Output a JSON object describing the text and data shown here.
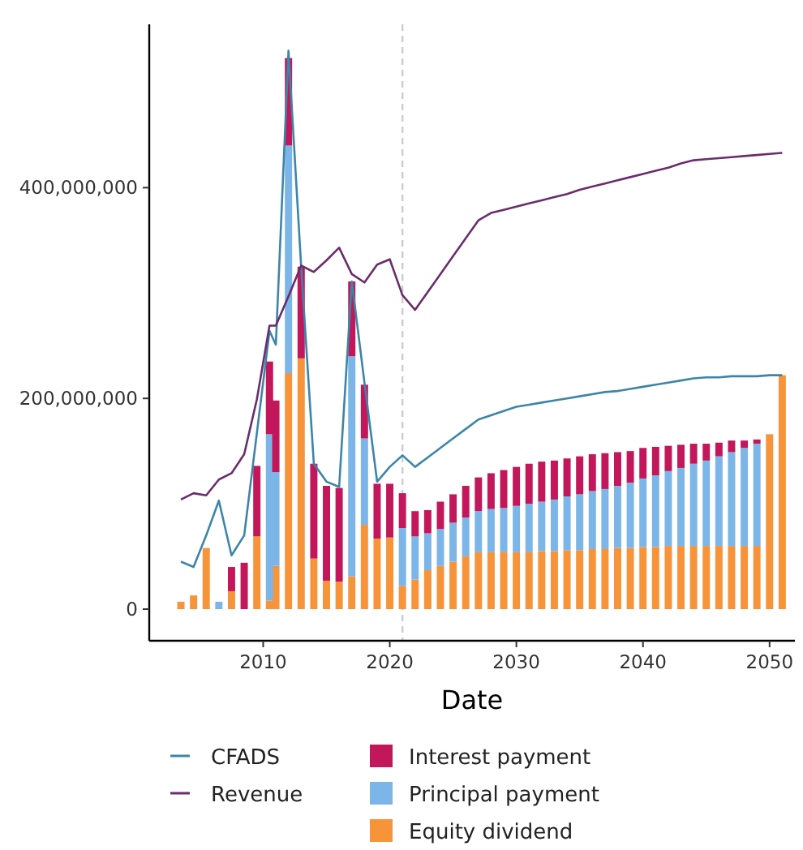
{
  "chart_data": {
    "type": "bar",
    "stacked": true,
    "xlabel": "Date",
    "legend": "bottom",
    "x": [
      2003.5,
      2004.5,
      2005.5,
      2006.5,
      2007.5,
      2008.5,
      2009.5,
      2010.5,
      2011,
      2012,
      2013,
      2014,
      2015,
      2016,
      2017,
      2018,
      2019,
      2020,
      2021,
      2022,
      2023,
      2024,
      2025,
      2026,
      2027,
      2028,
      2029,
      2030,
      2031,
      2032,
      2033,
      2034,
      2035,
      2036,
      2037,
      2038,
      2039,
      2040,
      2041,
      2042,
      2043,
      2044,
      2045,
      2046,
      2047,
      2048,
      2049,
      2050,
      2051
    ],
    "xlim": [
      2001,
      2052
    ],
    "xticks": [
      2010,
      2020,
      2030,
      2040,
      2050
    ],
    "ylim": [
      -30000000.0,
      555000000.0
    ],
    "yticks": [
      0,
      {
        "value": 200000000.0,
        "label": "200,000,000"
      },
      {
        "value": 400000000.0,
        "label": "400,000,000"
      }
    ],
    "ref_lines": [
      {
        "axis": "x",
        "value": 2021,
        "color": "#cccccc",
        "line_style": "dashed"
      }
    ],
    "series": [
      {
        "name": "Equity dividend",
        "color": "#f7943a",
        "values": [
          7000000.0,
          13000000.0,
          58000000.0,
          null,
          17000000.0,
          null,
          69000000.0,
          8000000.0,
          41000000.0,
          224000000.0,
          238000000.0,
          48000000.0,
          27000000.0,
          26000000.0,
          31000000.0,
          80000000.0,
          67000000.0,
          68000000.0,
          22000000.0,
          28000000.0,
          37000000.0,
          41000000.0,
          45000000.0,
          50000000.0,
          54000000.0,
          54000000.0,
          54000000.0,
          54000000.0,
          54000000.0,
          55000000.0,
          55000000.0,
          56000000.0,
          56000000.0,
          57000000.0,
          57000000.0,
          58000000.0,
          58000000.0,
          59000000.0,
          59000000.0,
          60000000.0,
          60000000.0,
          60000000.0,
          60000000.0,
          60000000.0,
          60000000.0,
          60000000.0,
          60000000.0,
          166000000.0,
          222000000.0
        ]
      },
      {
        "name": "Principal payment",
        "color": "#7cb5e8",
        "values": [
          null,
          null,
          null,
          7000000.0,
          null,
          null,
          null,
          158000000.0,
          89000000.0,
          216000000.0,
          null,
          null,
          null,
          null,
          209000000.0,
          82000000.0,
          null,
          null,
          55000000.0,
          41000000.0,
          35000000.0,
          35000000.0,
          37000000.0,
          37000000.0,
          39000000.0,
          41000000.0,
          42000000.0,
          44000000.0,
          46000000.0,
          47000000.0,
          49000000.0,
          51000000.0,
          53000000.0,
          55000000.0,
          57000000.0,
          59000000.0,
          62000000.0,
          65000000.0,
          68000000.0,
          71000000.0,
          74000000.0,
          78000000.0,
          81000000.0,
          85000000.0,
          89000000.0,
          93000000.0,
          97000000.0,
          null,
          null
        ]
      },
      {
        "name": "Interest payment",
        "color": "#c2185b",
        "values": [
          null,
          null,
          null,
          null,
          23000000.0,
          44000000.0,
          67000000.0,
          69000000.0,
          68000000.0,
          83000000.0,
          87000000.0,
          90000000.0,
          90000000.0,
          89000000.0,
          71000000.0,
          51000000.0,
          52000000.0,
          51000000.0,
          33000000.0,
          24000000.0,
          22000000.0,
          26000000.0,
          27000000.0,
          30000000.0,
          32000000.0,
          34000000.0,
          36000000.0,
          37000000.0,
          38000000.0,
          38000000.0,
          37000000.0,
          36000000.0,
          36000000.0,
          35000000.0,
          34000000.0,
          32000000.0,
          30000000.0,
          29000000.0,
          27000000.0,
          24000000.0,
          22000000.0,
          19000000.0,
          16000000.0,
          13000000.0,
          11000000.0,
          7000000.0,
          4000000.0,
          null,
          null
        ]
      },
      {
        "name": "CFADS",
        "type": "line",
        "color": "#3d85a8",
        "values": [
          45000000.0,
          40000000.0,
          70000000.0,
          103000000.0,
          51000000.0,
          70000000.0,
          167000000.0,
          264000000.0,
          251000000.0,
          530000000.0,
          325000000.0,
          138000000.0,
          121000000.0,
          116000000.0,
          311000000.0,
          215000000.0,
          121000000.0,
          135000000.0,
          146000000.0,
          135000000.0,
          144000000.0,
          153000000.0,
          162000000.0,
          171000000.0,
          180000000.0,
          184000000.0,
          188000000.0,
          192000000.0,
          194000000.0,
          196000000.0,
          198000000.0,
          200000000.0,
          202000000.0,
          204000000.0,
          206000000.0,
          207000000.0,
          209000000.0,
          211000000.0,
          213000000.0,
          215000000.0,
          217000000.0,
          219000000.0,
          220000000.0,
          220000000.0,
          221000000.0,
          221000000.0,
          221000000.0,
          222000000.0,
          222000000.0
        ]
      },
      {
        "name": "Revenue",
        "type": "line",
        "color": "#6b2d6b",
        "values": [
          104000000.0,
          110000000.0,
          108000000.0,
          123000000.0,
          129000000.0,
          147000000.0,
          199000000.0,
          269000000.0,
          269000000.0,
          297000000.0,
          326000000.0,
          320000000.0,
          331000000.0,
          343000000.0,
          318000000.0,
          310000000.0,
          327000000.0,
          332000000.0,
          298000000.0,
          284000000.0,
          301000000.0,
          318000000.0,
          335000000.0,
          352000000.0,
          369000000.0,
          376000000.0,
          379000000.0,
          382000000.0,
          385000000.0,
          388000000.0,
          391000000.0,
          394000000.0,
          398000000.0,
          401000000.0,
          404000000.0,
          407000000.0,
          410000000.0,
          413000000.0,
          416000000.0,
          419000000.0,
          423000000.0,
          426000000.0,
          427000000.0,
          428000000.0,
          429000000.0,
          430000000.0,
          431000000.0,
          432000000.0,
          433000000.0
        ]
      }
    ]
  }
}
